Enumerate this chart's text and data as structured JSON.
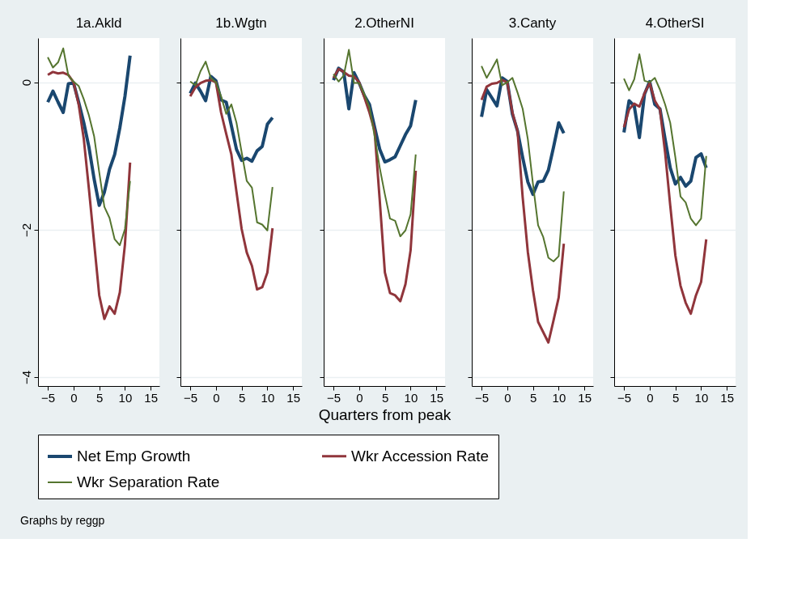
{
  "chart_data": [
    {
      "type": "line",
      "title": "1a.Akld",
      "x": [
        -5,
        -4,
        -3,
        -2,
        -1,
        0,
        1,
        2,
        3,
        4,
        5,
        6,
        7,
        8,
        9,
        10,
        11
      ],
      "xlim": [
        -6.9,
        16.7
      ],
      "ylim": [
        -4.12,
        0.6
      ],
      "xticks": [
        -5,
        0,
        5,
        10,
        15
      ],
      "yticks": [
        -4,
        -2,
        0
      ],
      "grid": "y",
      "legend": "bottom",
      "annotations": [
        "Graphs by reggp"
      ],
      "series": [
        {
          "name": "Net Emp Growth",
          "color": "#1a476f",
          "values": [
            -0.27,
            -0.12,
            -0.27,
            -0.41,
            -0.02,
            -0.01,
            -0.27,
            -0.55,
            -0.88,
            -1.31,
            -1.67,
            -1.49,
            -1.18,
            -0.98,
            -0.62,
            -0.19,
            0.36
          ]
        },
        {
          "name": "Wkr Accession Rate",
          "color": "#90353b",
          "values": [
            0.1,
            0.14,
            0.12,
            0.13,
            0.1,
            0,
            -0.3,
            -0.77,
            -1.45,
            -2.17,
            -2.89,
            -3.21,
            -3.04,
            -3.14,
            -2.85,
            -2.2,
            -1.09
          ]
        },
        {
          "name": "Wkr Separation Rate",
          "color": "#55752f",
          "values": [
            0.34,
            0.2,
            0.27,
            0.46,
            0.09,
            0.01,
            -0.05,
            -0.23,
            -0.45,
            -0.73,
            -1.22,
            -1.69,
            -1.84,
            -2.13,
            -2.21,
            -1.99,
            -1.34
          ]
        }
      ]
    },
    {
      "type": "line",
      "title": "1b.Wgtn",
      "x": [
        -5,
        -4,
        -3,
        -2,
        -1,
        0,
        1,
        2,
        3,
        4,
        5,
        6,
        7,
        8,
        9,
        10,
        11
      ],
      "xlim": [
        -6.9,
        16.7
      ],
      "ylim": [
        -4.12,
        0.6
      ],
      "xticks": [
        -5,
        0,
        5,
        10,
        15
      ],
      "yticks": [
        -4,
        -2,
        0
      ],
      "grid": "y",
      "legend": "bottom",
      "tick_labels": "x",
      "series": [
        {
          "name": "Net Emp Growth",
          "color": "#1a476f",
          "values": [
            -0.15,
            -0.01,
            -0.12,
            -0.25,
            0.08,
            0.02,
            -0.24,
            -0.27,
            -0.59,
            -0.91,
            -1.06,
            -1.03,
            -1.07,
            -0.93,
            -0.87,
            -0.57,
            -0.48
          ]
        },
        {
          "name": "Wkr Accession Rate",
          "color": "#90353b",
          "values": [
            -0.19,
            -0.07,
            -0.01,
            0.02,
            0.03,
            0,
            -0.41,
            -0.7,
            -0.98,
            -1.49,
            -1.99,
            -2.31,
            -2.49,
            -2.81,
            -2.78,
            -2.58,
            -1.98
          ]
        },
        {
          "name": "Wkr Separation Rate",
          "color": "#55752f",
          "values": [
            0.01,
            -0.04,
            0.15,
            0.28,
            0.06,
            0,
            -0.19,
            -0.43,
            -0.3,
            -0.55,
            -0.95,
            -1.34,
            -1.43,
            -1.9,
            -1.93,
            -2.01,
            -1.42
          ]
        }
      ]
    },
    {
      "type": "line",
      "title": "2.OtherNI",
      "x": [
        -5,
        -4,
        -3,
        -2,
        -1,
        0,
        1,
        2,
        3,
        4,
        5,
        6,
        7,
        8,
        9,
        10,
        11
      ],
      "xlim": [
        -6.9,
        16.7
      ],
      "ylim": [
        -4.12,
        0.6
      ],
      "xticks": [
        -5,
        0,
        5,
        10,
        15
      ],
      "yticks": [
        -4,
        -2,
        0
      ],
      "grid": "y",
      "legend": "bottom",
      "tick_labels": "x",
      "xlabel": "Quarters from peak",
      "series": [
        {
          "name": "Net Emp Growth",
          "color": "#1a476f",
          "values": [
            0.03,
            0.19,
            0.14,
            -0.36,
            0.13,
            -0.01,
            -0.18,
            -0.3,
            -0.61,
            -0.91,
            -1.08,
            -1.05,
            -1.01,
            -0.86,
            -0.71,
            -0.59,
            -0.24
          ]
        },
        {
          "name": "Wkr Accession Rate",
          "color": "#90353b",
          "values": [
            0.06,
            0.18,
            0.14,
            0.09,
            0.08,
            0,
            -0.2,
            -0.41,
            -0.66,
            -1.6,
            -2.58,
            -2.86,
            -2.89,
            -2.97,
            -2.74,
            -2.28,
            -1.2
          ]
        },
        {
          "name": "Wkr Separation Rate",
          "color": "#55752f",
          "values": [
            0.11,
            0.01,
            0.09,
            0.44,
            -0.01,
            -0.01,
            -0.16,
            -0.34,
            -0.73,
            -1.16,
            -1.52,
            -1.85,
            -1.88,
            -2.09,
            -2.01,
            -1.79,
            -0.98
          ]
        }
      ]
    },
    {
      "type": "line",
      "title": "3.Canty",
      "x": [
        -5,
        -4,
        -3,
        -2,
        -1,
        0,
        1,
        2,
        3,
        4,
        5,
        6,
        7,
        8,
        9,
        10,
        11
      ],
      "xlim": [
        -6.9,
        16.7
      ],
      "ylim": [
        -4.12,
        0.6
      ],
      "xticks": [
        -5,
        0,
        5,
        10,
        15
      ],
      "yticks": [
        -4,
        -2,
        0
      ],
      "grid": "y",
      "legend": "bottom",
      "tick_labels": "x",
      "series": [
        {
          "name": "Net Emp Growth",
          "color": "#1a476f",
          "values": [
            -0.47,
            -0.1,
            -0.21,
            -0.32,
            0.06,
            0.01,
            -0.43,
            -0.66,
            -1.02,
            -1.35,
            -1.52,
            -1.35,
            -1.34,
            -1.19,
            -0.88,
            -0.55,
            -0.69
          ]
        },
        {
          "name": "Wkr Accession Rate",
          "color": "#90353b",
          "values": [
            -0.24,
            -0.06,
            -0.02,
            -0.01,
            0.03,
            0,
            -0.41,
            -0.66,
            -1.56,
            -2.3,
            -2.82,
            -3.25,
            -3.39,
            -3.53,
            -3.23,
            -2.92,
            -2.19
          ]
        },
        {
          "name": "Wkr Separation Rate",
          "color": "#55752f",
          "values": [
            0.22,
            0.06,
            0.18,
            0.31,
            -0.04,
            0,
            0.06,
            -0.14,
            -0.36,
            -0.77,
            -1.38,
            -1.94,
            -2.1,
            -2.38,
            -2.43,
            -2.36,
            -1.48
          ]
        }
      ]
    },
    {
      "type": "line",
      "title": "4.OtherSI",
      "x": [
        -5,
        -4,
        -3,
        -2,
        -1,
        0,
        1,
        2,
        3,
        4,
        5,
        6,
        7,
        8,
        9,
        10,
        11
      ],
      "xlim": [
        -6.9,
        16.7
      ],
      "ylim": [
        -4.12,
        0.6
      ],
      "xticks": [
        -5,
        0,
        5,
        10,
        15
      ],
      "yticks": [
        -4,
        -2,
        0
      ],
      "grid": "y",
      "legend": "bottom",
      "tick_labels": "x",
      "series": [
        {
          "name": "Net Emp Growth",
          "color": "#1a476f",
          "values": [
            -0.68,
            -0.25,
            -0.32,
            -0.75,
            -0.16,
            0.01,
            -0.3,
            -0.36,
            -0.77,
            -1.16,
            -1.38,
            -1.29,
            -1.41,
            -1.34,
            -1.02,
            -0.97,
            -1.16
          ]
        },
        {
          "name": "Wkr Accession Rate",
          "color": "#90353b",
          "values": [
            -0.61,
            -0.37,
            -0.29,
            -0.33,
            -0.15,
            -0.01,
            -0.25,
            -0.37,
            -0.95,
            -1.67,
            -2.35,
            -2.76,
            -2.99,
            -3.14,
            -2.89,
            -2.71,
            -2.13
          ]
        },
        {
          "name": "Wkr Separation Rate",
          "color": "#55752f",
          "values": [
            0.05,
            -0.11,
            0.04,
            0.38,
            0.02,
            0,
            0.06,
            -0.1,
            -0.3,
            -0.55,
            -1.02,
            -1.55,
            -1.63,
            -1.85,
            -1.94,
            -1.85,
            -1.0
          ]
        }
      ]
    }
  ]
}
